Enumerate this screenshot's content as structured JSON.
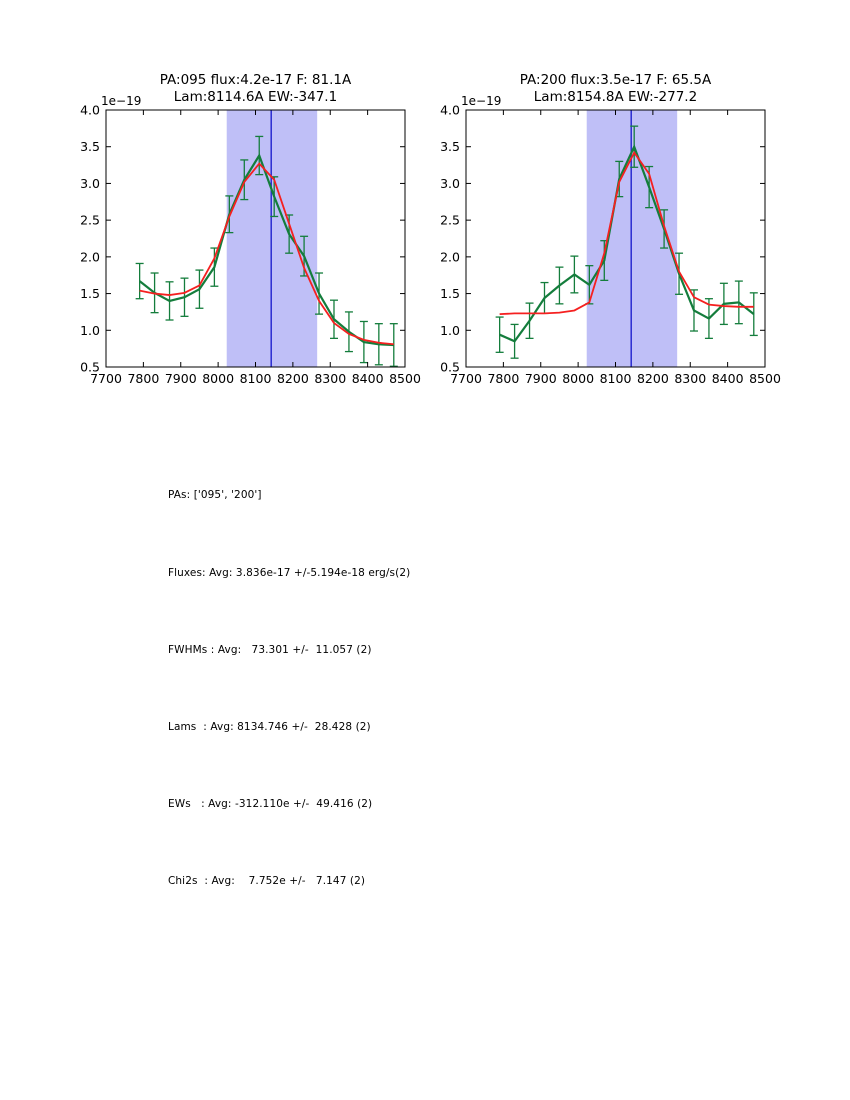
{
  "figure": {
    "background": "#ffffff",
    "colors": {
      "band": "#bfbff7",
      "vline": "#2021cd",
      "observed": "#147d3c",
      "model": "#f52020",
      "axis": "#000000",
      "text": "#000000"
    }
  },
  "chart_data": [
    {
      "type": "line",
      "title_line1": "PA:095 flux:4.2e-17 F: 81.1A",
      "title_line2": "Lam:8114.6A EW:-347.1",
      "offset_label": "1e−19",
      "xlim": [
        7700,
        8500
      ],
      "ylim": [
        0.5,
        4.0
      ],
      "x_tick_labels": [
        "7700",
        "7800",
        "7900",
        "8000",
        "8100",
        "8200",
        "8300",
        "8400",
        "8500"
      ],
      "y_tick_labels": [
        "0.5",
        "1.0",
        "1.5",
        "2.0",
        "2.5",
        "3.0",
        "3.5",
        "4.0"
      ],
      "band": [
        8023,
        8265
      ],
      "vline": 8142,
      "x": [
        7790,
        7830,
        7870,
        7910,
        7950,
        7990,
        8030,
        8070,
        8110,
        8150,
        8190,
        8230,
        8270,
        8310,
        8350,
        8390,
        8430,
        8470
      ],
      "series": [
        {
          "name": "observed-spectrum",
          "values": [
            1.67,
            1.51,
            1.4,
            1.45,
            1.56,
            1.86,
            2.58,
            3.05,
            3.38,
            2.82,
            2.31,
            2.01,
            1.5,
            1.15,
            0.98,
            0.84,
            0.81,
            0.8
          ],
          "yerr": [
            0.24,
            0.27,
            0.26,
            0.26,
            0.26,
            0.26,
            0.25,
            0.27,
            0.26,
            0.27,
            0.26,
            0.27,
            0.28,
            0.26,
            0.27,
            0.28,
            0.28,
            0.29
          ]
        },
        {
          "name": "model-fit",
          "values": [
            1.54,
            1.5,
            1.48,
            1.51,
            1.61,
            1.98,
            2.55,
            3.02,
            3.27,
            3.05,
            2.45,
            1.85,
            1.4,
            1.1,
            0.95,
            0.87,
            0.83,
            0.81
          ]
        }
      ]
    },
    {
      "type": "line",
      "title_line1": "PA:200 flux:3.5e-17 F: 65.5A",
      "title_line2": "Lam:8154.8A EW:-277.2",
      "offset_label": "1e−19",
      "xlim": [
        7700,
        8500
      ],
      "ylim": [
        0.5,
        4.0
      ],
      "x_tick_labels": [
        "7700",
        "7800",
        "7900",
        "8000",
        "8100",
        "8200",
        "8300",
        "8400",
        "8500"
      ],
      "y_tick_labels": [
        "0.5",
        "1.0",
        "1.5",
        "2.0",
        "2.5",
        "3.0",
        "3.5",
        "4.0"
      ],
      "band": [
        8023,
        8265
      ],
      "vline": 8142,
      "x": [
        7790,
        7830,
        7870,
        7910,
        7950,
        7990,
        8030,
        8070,
        8110,
        8150,
        8190,
        8230,
        8270,
        8310,
        8350,
        8390,
        8430,
        8470
      ],
      "series": [
        {
          "name": "observed-spectrum",
          "values": [
            0.94,
            0.85,
            1.13,
            1.44,
            1.61,
            1.76,
            1.62,
            1.95,
            3.06,
            3.5,
            2.95,
            2.38,
            1.77,
            1.27,
            1.16,
            1.36,
            1.38,
            1.22
          ],
          "yerr": [
            0.24,
            0.23,
            0.24,
            0.21,
            0.25,
            0.25,
            0.26,
            0.27,
            0.24,
            0.28,
            0.28,
            0.26,
            0.28,
            0.28,
            0.27,
            0.28,
            0.29,
            0.29
          ]
        },
        {
          "name": "model-fit",
          "values": [
            1.22,
            1.23,
            1.23,
            1.23,
            1.24,
            1.27,
            1.38,
            2.05,
            3.02,
            3.42,
            3.13,
            2.42,
            1.8,
            1.45,
            1.35,
            1.33,
            1.32,
            1.32
          ]
        }
      ]
    }
  ],
  "stats": {
    "lines": [
      "PAs: ['095', '200']",
      "Fluxes: Avg: 3.836e-17 +/-5.194e-18 erg/s(2)",
      "FWHMs : Avg:   73.301 +/-  11.057 (2)",
      "Lams  : Avg: 8134.746 +/-  28.428 (2)",
      "EWs   : Avg: -312.110e +/-  49.416 (2)",
      "Chi2s  : Avg:    7.752e +/-   7.147 (2)"
    ]
  }
}
